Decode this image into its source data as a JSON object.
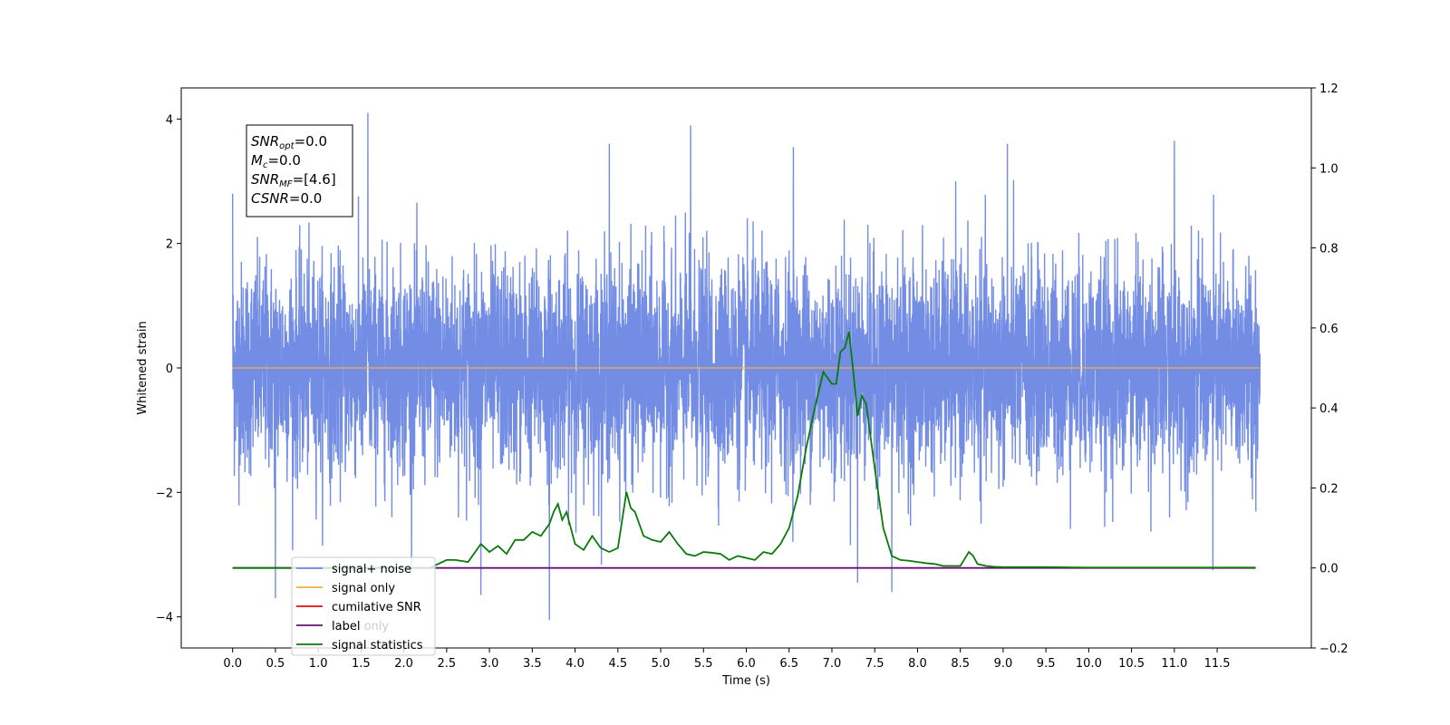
{
  "chart_data": {
    "type": "line",
    "xlabel": "Time (s)",
    "ylabel_left": "Whitened strain",
    "ylabel_right": "",
    "xlim": [
      -0.6,
      12.6
    ],
    "ylim_left": [
      -4.5,
      4.5
    ],
    "ylim_right": [
      -0.2,
      1.2
    ],
    "x_ticks": [
      "0.0",
      "0.5",
      "1.0",
      "1.5",
      "2.0",
      "2.5",
      "3.0",
      "3.5",
      "4.0",
      "4.5",
      "5.0",
      "5.5",
      "6.0",
      "6.5",
      "7.0",
      "7.5",
      "8.0",
      "8.5",
      "9.0",
      "9.5",
      "10.0",
      "10.5",
      "11.0",
      "11.5"
    ],
    "y_ticks_left": [
      "4",
      "2",
      "0",
      "−2",
      "−4"
    ],
    "y_ticks_right": [
      "1.2",
      "1.0",
      "0.8",
      "0.6",
      "0.4",
      "0.2",
      "0.0",
      "−0.2"
    ],
    "grid": false,
    "legend_position": "lower-left",
    "noise_series": {
      "x_range": [
        0.0,
        12.0
      ],
      "center": 0.0,
      "typical_abs_amplitude": 1.6,
      "envelope": [
        -3.7,
        4.1
      ],
      "peaks": [
        {
          "x": 0.0,
          "y": 2.8
        },
        {
          "x": 0.5,
          "y": -3.7
        },
        {
          "x": 1.58,
          "y": 4.1
        },
        {
          "x": 2.9,
          "y": -3.65
        },
        {
          "x": 3.7,
          "y": -4.05
        },
        {
          "x": 4.4,
          "y": 3.6
        },
        {
          "x": 5.35,
          "y": 3.9
        },
        {
          "x": 6.55,
          "y": 3.55
        },
        {
          "x": 7.3,
          "y": -3.45
        },
        {
          "x": 7.7,
          "y": -3.6
        },
        {
          "x": 9.05,
          "y": 3.6
        },
        {
          "x": 11.0,
          "y": 3.65
        },
        {
          "x": 11.45,
          "y": -3.25
        }
      ]
    },
    "series": [
      {
        "name": "signal+ noise",
        "axis": "left",
        "color": "#6b87e3"
      },
      {
        "name": "signal only",
        "axis": "left",
        "color": "#f5b041",
        "x": [
          0.0,
          12.0
        ],
        "y": [
          0.0,
          0.0
        ]
      },
      {
        "name": "cumilative SNR",
        "axis": "right",
        "color": "#e01010"
      },
      {
        "name": "label",
        "axis": "right",
        "color": "#6a0f75",
        "x": [
          0.0,
          11.95
        ],
        "y": [
          0.0,
          0.0
        ]
      },
      {
        "name": "signal statistics",
        "axis": "right",
        "color": "#0a7a0a",
        "x": [
          0.0,
          0.5,
          1.0,
          1.5,
          2.0,
          2.3,
          2.5,
          2.6,
          2.75,
          2.9,
          3.0,
          3.1,
          3.2,
          3.3,
          3.4,
          3.5,
          3.6,
          3.7,
          3.75,
          3.8,
          3.85,
          3.9,
          4.0,
          4.1,
          4.2,
          4.3,
          4.4,
          4.5,
          4.6,
          4.65,
          4.7,
          4.8,
          4.9,
          5.0,
          5.1,
          5.2,
          5.3,
          5.4,
          5.5,
          5.6,
          5.7,
          5.8,
          5.9,
          6.0,
          6.1,
          6.2,
          6.3,
          6.4,
          6.5,
          6.6,
          6.7,
          6.8,
          6.9,
          7.0,
          7.05,
          7.1,
          7.15,
          7.2,
          7.25,
          7.3,
          7.35,
          7.4,
          7.5,
          7.6,
          7.7,
          7.8,
          7.9,
          8.0,
          8.1,
          8.2,
          8.3,
          8.4,
          8.5,
          8.6,
          8.65,
          8.7,
          8.8,
          8.9,
          9.0,
          9.5,
          10.0,
          10.5,
          11.0,
          11.5,
          11.95
        ],
        "y": [
          0.0,
          0.0,
          0.0,
          0.0,
          0.0,
          0.0,
          0.02,
          0.02,
          0.015,
          0.06,
          0.04,
          0.055,
          0.035,
          0.07,
          0.07,
          0.09,
          0.08,
          0.11,
          0.14,
          0.16,
          0.12,
          0.14,
          0.06,
          0.045,
          0.08,
          0.05,
          0.04,
          0.05,
          0.19,
          0.15,
          0.14,
          0.08,
          0.07,
          0.065,
          0.09,
          0.06,
          0.035,
          0.03,
          0.04,
          0.038,
          0.035,
          0.02,
          0.03,
          0.025,
          0.02,
          0.04,
          0.035,
          0.06,
          0.1,
          0.18,
          0.3,
          0.4,
          0.49,
          0.46,
          0.46,
          0.54,
          0.55,
          0.59,
          0.49,
          0.38,
          0.43,
          0.41,
          0.25,
          0.1,
          0.03,
          0.02,
          0.018,
          0.015,
          0.012,
          0.01,
          0.005,
          0.005,
          0.005,
          0.04,
          0.03,
          0.01,
          0.005,
          0.003,
          0.002,
          0.002,
          0.001,
          0.001,
          0.001,
          0.001,
          0.001
        ]
      }
    ],
    "annotation": {
      "lines": [
        {
          "base": "SNR",
          "sub": "opt",
          "value": "=0.0"
        },
        {
          "base": "M",
          "sub": "c",
          "value": "=0.0"
        },
        {
          "base": "SNR",
          "sub": "MF",
          "value": "=[4.6]"
        },
        {
          "base": "CSNR",
          "sub": "",
          "value": "=0.0"
        }
      ]
    },
    "legend": {
      "entries": [
        "signal+ noise",
        "signal only",
        "cumilative SNR",
        "label",
        "signal statistics"
      ],
      "background_text": [
        "cumilative SNR",
        "label only",
        "signal statistics"
      ]
    }
  }
}
